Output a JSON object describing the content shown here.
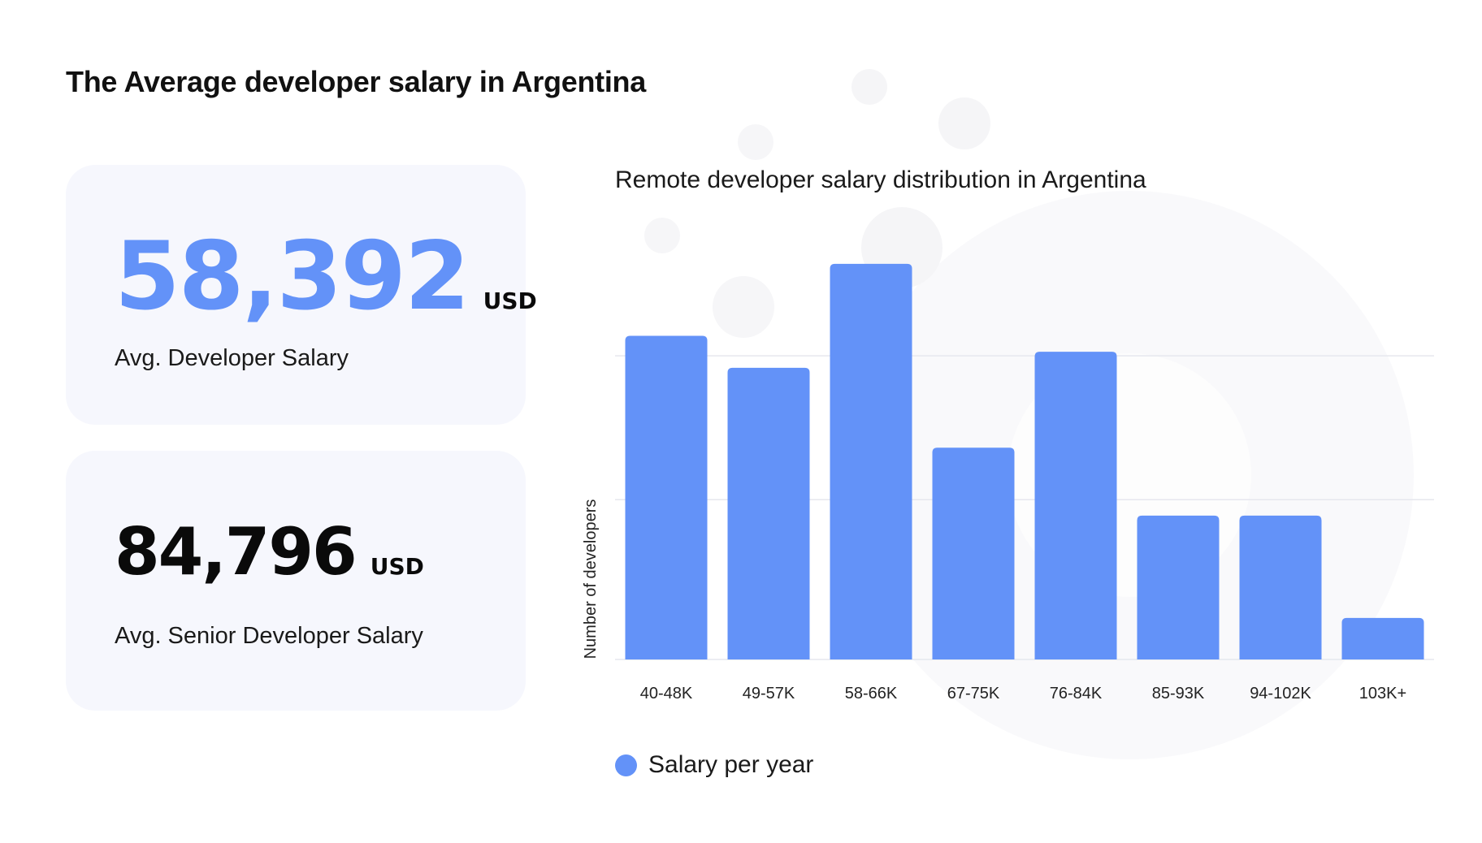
{
  "page": {
    "title": "The Average developer salary in Argentina"
  },
  "stats": [
    {
      "value": "58,392",
      "unit": "USD",
      "label": "Avg. Developer Salary"
    },
    {
      "value": "84,796",
      "unit": "USD",
      "label": "Avg. Senior Developer Salary"
    }
  ],
  "colors": {
    "accent": "#6392f8",
    "card_bg": "#f6f7fd",
    "grid": "#e6e7ee"
  },
  "legend": {
    "label": "Salary per year"
  },
  "chart_data": {
    "type": "bar",
    "title": "Remote developer salary distribution in Argentina",
    "xlabel": "",
    "ylabel": "Number of developers",
    "categories": [
      "40-48K",
      "49-57K",
      "58-66K",
      "67-75K",
      "76-84K",
      "85-93K",
      "94-102K",
      "103K+"
    ],
    "series": [
      {
        "name": "Salary per year",
        "values": [
          40.5,
          36.5,
          49.5,
          26.5,
          38.5,
          18,
          18,
          5.2
        ]
      }
    ],
    "ylim": [
      0,
      50
    ],
    "grid": true,
    "gridlines": [
      20,
      38
    ],
    "legend": "bottom-left"
  }
}
